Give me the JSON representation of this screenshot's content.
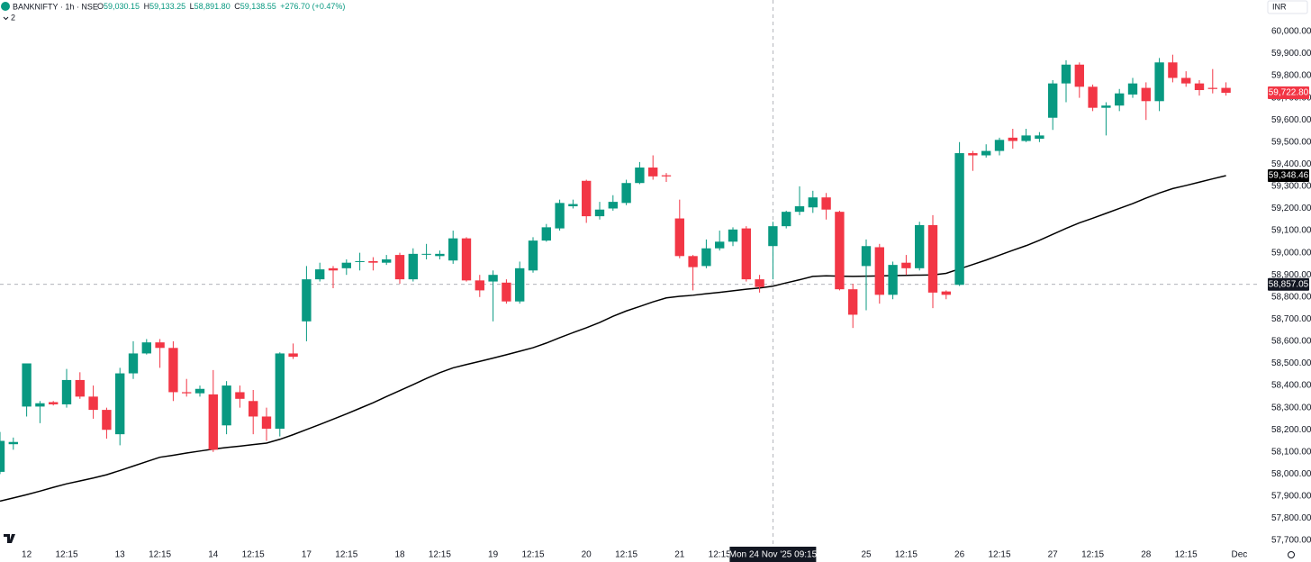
{
  "header": {
    "symbol": "BANKNIFTY · 1h · NSE",
    "ohlc": [
      {
        "key": "O",
        "value": "59,030.15"
      },
      {
        "key": "H",
        "value": "59,133.25"
      },
      {
        "key": "L",
        "value": "58,891.80"
      },
      {
        "key": "C",
        "value": "59,138.55"
      }
    ],
    "change": "+276.70 (+0.47%)",
    "indicators": "2",
    "currency": "INR"
  },
  "chart_data": {
    "type": "candlestick",
    "up_color": "#089981",
    "down_color": "#f23645",
    "grid": false,
    "categories": [
      null,
      null,
      "12",
      null,
      null,
      "12:15",
      null,
      null,
      null,
      "13",
      null,
      null,
      "12:15",
      null,
      null,
      null,
      "14",
      null,
      null,
      "12:15",
      null,
      null,
      null,
      "17",
      null,
      null,
      "12:15",
      null,
      null,
      null,
      "18",
      null,
      null,
      "12:15",
      null,
      null,
      null,
      "19",
      null,
      null,
      "12:15",
      null,
      null,
      null,
      "20",
      null,
      null,
      "12:15",
      null,
      null,
      null,
      "21",
      null,
      null,
      "12:15",
      null,
      null,
      null,
      null,
      null,
      null,
      null,
      null,
      null,
      null,
      "25",
      null,
      null,
      "12:15",
      null,
      null,
      null,
      "26",
      null,
      null,
      "12:15",
      null,
      null,
      null,
      "27",
      null,
      null,
      "12:15",
      null,
      null,
      null,
      "28",
      null,
      null,
      "12:15",
      null,
      null,
      null
    ],
    "next_label": "Dec",
    "open": [
      58010,
      58135,
      58305,
      58305,
      58325,
      58315,
      58425,
      58350,
      58290,
      58180,
      58455,
      58545,
      58595,
      58570,
      58370,
      58365,
      58360,
      58220,
      58370,
      58330,
      58260,
      58205,
      58545,
      58690,
      58880,
      58930,
      58930,
      58960,
      58962,
      58955,
      58990,
      58880,
      58995,
      58985,
      58965,
      59065,
      58875,
      58870,
      58865,
      58780,
      58920,
      59055,
      59110,
      59210,
      59325,
      59165,
      59200,
      59225,
      59315,
      59385,
      59350,
      59155,
      58985,
      58940,
      59020,
      59050,
      59110,
      58880,
      59030.15,
      59120,
      59185,
      59205,
      59250,
      59185,
      58835,
      58940,
      59025,
      58810,
      58955,
      58930,
      59125,
      58825,
      58855,
      59450,
      59440,
      59460,
      59520,
      59505,
      59515,
      59610,
      59765,
      59850,
      59750,
      59655,
      59665,
      59715,
      59745,
      59685,
      59860,
      59790,
      59765,
      59745,
      59745
    ],
    "high": [
      58190,
      58165,
      58500,
      58330,
      58330,
      58475,
      58460,
      58400,
      58300,
      58480,
      58600,
      58610,
      58610,
      58600,
      58430,
      58400,
      58470,
      58420,
      58400,
      58380,
      58300,
      58550,
      58590,
      58940,
      58955,
      58940,
      58970,
      59000,
      58980,
      58990,
      59000,
      59020,
      59040,
      59010,
      59100,
      59070,
      58900,
      58920,
      58880,
      58960,
      59070,
      59130,
      59240,
      59240,
      59330,
      59230,
      59260,
      59330,
      59410,
      59440,
      59360,
      59240,
      58990,
      59060,
      59100,
      59115,
      59120,
      58900,
      59140,
      59190,
      59300,
      59280,
      59270,
      59190,
      58860,
      59060,
      59040,
      58960,
      58990,
      59140,
      59170,
      58830,
      59500,
      59460,
      59490,
      59520,
      59560,
      59560,
      59545,
      59780,
      59870,
      59860,
      59760,
      59680,
      59740,
      59790,
      59770,
      59880,
      59895,
      59820,
      59780,
      59830,
      59770
    ],
    "low": [
      58000,
      58110,
      58260,
      58230,
      58310,
      58300,
      58340,
      58250,
      58160,
      58130,
      58430,
      58540,
      58480,
      58330,
      58350,
      58350,
      58100,
      58180,
      58300,
      58180,
      58150,
      58170,
      58520,
      58600,
      58870,
      58840,
      58900,
      58920,
      58920,
      58945,
      58860,
      58870,
      58970,
      58970,
      58950,
      58870,
      58800,
      58690,
      58770,
      58770,
      58910,
      59050,
      59100,
      59200,
      59135,
      59150,
      59190,
      59215,
      59310,
      59330,
      59320,
      58975,
      58830,
      58930,
      59010,
      59030,
      58870,
      58820,
      58880,
      59110,
      59170,
      59180,
      59150,
      58830,
      58660,
      58740,
      58770,
      58790,
      58900,
      58920,
      58750,
      58790,
      58850,
      59370,
      59430,
      59440,
      59470,
      59500,
      59500,
      59555,
      59680,
      59700,
      59640,
      59530,
      59640,
      59700,
      59600,
      59640,
      59770,
      59750,
      59710,
      59720,
      59710
    ],
    "close": [
      58150,
      58145,
      58500,
      58320,
      58315,
      58425,
      58350,
      58290,
      58200,
      58455,
      58545,
      58595,
      58570,
      58370,
      58365,
      58385,
      58110,
      58400,
      58340,
      58260,
      58205,
      58545,
      58530,
      58880,
      58925,
      58920,
      58955,
      58962,
      58955,
      58970,
      58880,
      58995,
      58995,
      58995,
      59065,
      58875,
      58830,
      58900,
      58780,
      58930,
      59055,
      59115,
      59225,
      59220,
      59165,
      59195,
      59230,
      59315,
      59385,
      59345,
      59345,
      58985,
      58935,
      59020,
      59050,
      59105,
      58880,
      58845,
      59120,
      59185,
      59210,
      59250,
      59195,
      58835,
      58720,
      59030,
      58810,
      58945,
      58930,
      59125,
      58820,
      58810,
      59450,
      59440,
      59460,
      59510,
      59505,
      59530,
      59530,
      59765,
      59850,
      59750,
      59655,
      59665,
      59720,
      59765,
      59685,
      59860,
      59790,
      59765,
      59735,
      59740,
      59722.8
    ],
    "ma": {
      "color": "#000000",
      "values": [
        57878,
        57892,
        57907,
        57923,
        57940,
        57956,
        57969,
        57982,
        57997,
        58016,
        58036,
        58056,
        58076,
        58085,
        58095,
        58104,
        58113,
        58120,
        58126,
        58133,
        58140,
        58157,
        58178,
        58201,
        58224,
        58248,
        58272,
        58297,
        58322,
        58350,
        58377,
        58404,
        58432,
        58458,
        58480,
        58495,
        58509,
        58524,
        58539,
        58555,
        58571,
        58592,
        58616,
        58639,
        58661,
        58685,
        58713,
        58737,
        58757,
        58778,
        58796,
        58803,
        58808,
        58815,
        58821,
        58828,
        58835,
        58841,
        58849,
        58864,
        58878,
        58893,
        58896,
        58894,
        58893,
        58894,
        58895,
        58897,
        58898,
        58899,
        58900,
        58907,
        58927,
        58947,
        58967,
        58989,
        59011,
        59032,
        59056,
        59083,
        59110,
        59135,
        59156,
        59178,
        59200,
        59222,
        59247,
        59270,
        59290,
        59304,
        59319,
        59334,
        59348.46
      ]
    },
    "ylim": [
      57680,
      60142
    ],
    "yticks": [
      {
        "value": 60000,
        "label": "60,000.00"
      },
      {
        "value": 59900,
        "label": "59,900.00"
      },
      {
        "value": 59800,
        "label": "59,800.00"
      },
      {
        "value": 59700,
        "label": "59,700.00"
      },
      {
        "value": 59600,
        "label": "59,600.00"
      },
      {
        "value": 59500,
        "label": "59,500.00"
      },
      {
        "value": 59400,
        "label": "59,400.00"
      },
      {
        "value": 59300,
        "label": "59,300.00"
      },
      {
        "value": 59200,
        "label": "59,200.00"
      },
      {
        "value": 59100,
        "label": "59,100.00"
      },
      {
        "value": 59000,
        "label": "59,000.00"
      },
      {
        "value": 58900,
        "label": "58,900.00"
      },
      {
        "value": 58800,
        "label": "58,800.00"
      },
      {
        "value": 58700,
        "label": "58,700.00"
      },
      {
        "value": 58600,
        "label": "58,600.00"
      },
      {
        "value": 58500,
        "label": "58,500.00"
      },
      {
        "value": 58400,
        "label": "58,400.00"
      },
      {
        "value": 58300,
        "label": "58,300.00"
      },
      {
        "value": 58200,
        "label": "58,200.00"
      },
      {
        "value": 58100,
        "label": "58,100.00"
      },
      {
        "value": 58000,
        "label": "58,000.00"
      },
      {
        "value": 57900,
        "label": "57,900.00"
      },
      {
        "value": 57800,
        "label": "57,800.00"
      },
      {
        "value": 57700,
        "label": "57,700.00"
      }
    ],
    "price_labels": [
      {
        "value": 59722.8,
        "label": "59,722.80",
        "color": "#f23645"
      },
      {
        "value": 59348.46,
        "label": "59,348.46",
        "color": "#000000"
      }
    ],
    "crosshair": {
      "y": {
        "value": 58857.05,
        "label": "58,857.05"
      },
      "x_label": "Mon 24 Nov '25  09:15",
      "color": "#9598a1"
    }
  }
}
